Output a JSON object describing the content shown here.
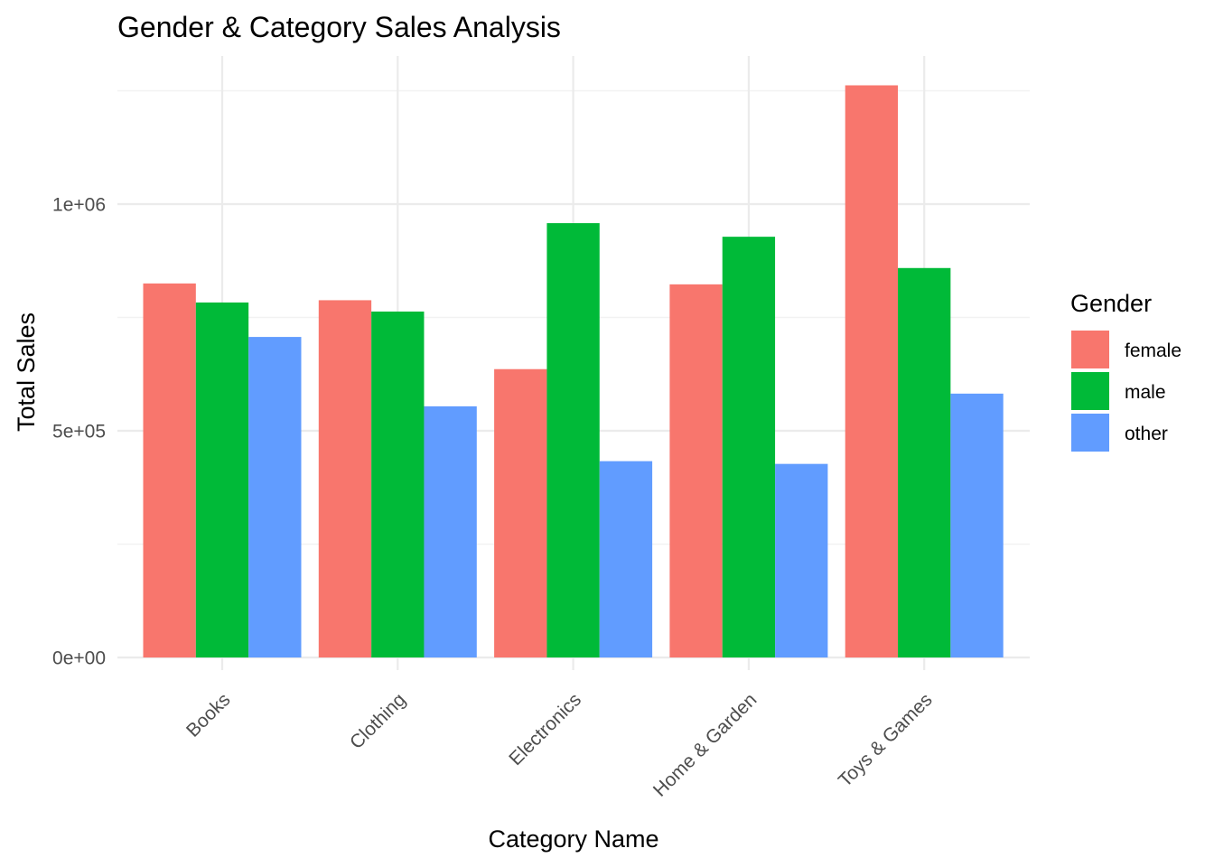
{
  "chart_data": {
    "type": "bar",
    "title": "Gender & Category Sales Analysis",
    "xlabel": "Category Name",
    "ylabel": "Total Sales",
    "categories": [
      "Books",
      "Clothing",
      "Electronics",
      "Home & Garden",
      "Toys & Games"
    ],
    "series": [
      {
        "name": "female",
        "color": "#F8766D",
        "values": [
          825000,
          788000,
          636000,
          823000,
          1262000
        ]
      },
      {
        "name": "male",
        "color": "#00BA38",
        "values": [
          783000,
          763000,
          958000,
          928000,
          859000
        ]
      },
      {
        "name": "other",
        "color": "#619CFF",
        "values": [
          707000,
          554000,
          433000,
          427000,
          582000
        ]
      }
    ],
    "ylim": [
      0,
      1330000
    ],
    "y_ticks": [
      {
        "value": 0,
        "label": "0e+00"
      },
      {
        "value": 500000,
        "label": "5e+05"
      },
      {
        "value": 1000000,
        "label": "1e+06"
      }
    ],
    "y_minor_ticks": [
      250000,
      750000,
      1250000
    ],
    "grid": true,
    "legend": {
      "title": "Gender",
      "position": "right"
    },
    "x_tick_rotation": "45"
  }
}
